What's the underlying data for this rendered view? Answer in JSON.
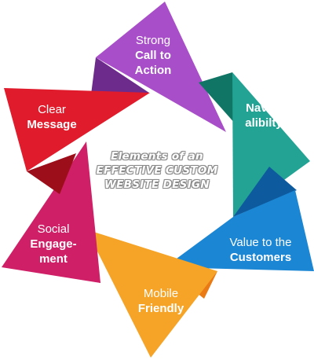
{
  "center": {
    "line1": "Elements of an",
    "line2": "EFFECTIVE CUSTOM",
    "line3": "WEBSITE DESIGN"
  },
  "segments": [
    {
      "id": "strong",
      "line1": "Strong",
      "line2": "Call to",
      "line3": "Action",
      "color": "#a84ec8",
      "dark": "#6d2c8c"
    },
    {
      "id": "navig",
      "line1": "Navig-",
      "line2": "alibilty",
      "color": "#22a394",
      "dark": "#107565"
    },
    {
      "id": "value",
      "line1": "Value to the",
      "line2": "Customers",
      "color": "#1b86d3",
      "dark": "#0e5a9e"
    },
    {
      "id": "mobile",
      "line1": "Mobile",
      "line2": "Friendly",
      "color": "#f6a428",
      "dark": "#ea7a14"
    },
    {
      "id": "social",
      "line1": "Social",
      "line2": "Engage-",
      "line3": "ment",
      "color": "#cf1f66",
      "dark": "#8f0f44"
    },
    {
      "id": "clear",
      "line1": "Clear",
      "line2": "Message",
      "color": "#e01b2c",
      "dark": "#9c0e1a"
    }
  ]
}
